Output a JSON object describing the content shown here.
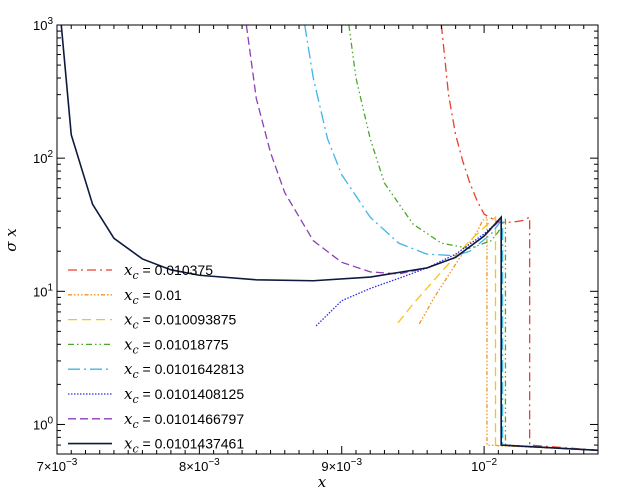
{
  "chart_data": {
    "type": "line",
    "title": "",
    "xlabel": "x",
    "ylabel": "σ x",
    "xlim": [
      0.007,
      0.0108
    ],
    "ylim": [
      0.6,
      1000
    ],
    "yscale": "log",
    "grid": false,
    "legend_position": "bottom-left",
    "x_ticks": [
      {
        "value": 0.007,
        "mantissa": "7×10",
        "exp": "−3"
      },
      {
        "value": 0.008,
        "mantissa": "8×10",
        "exp": "−3"
      },
      {
        "value": 0.009,
        "mantissa": "9×10",
        "exp": "−3"
      },
      {
        "value": 0.01,
        "mantissa": "10",
        "exp": "−2"
      }
    ],
    "y_ticks": [
      {
        "value": 1,
        "mantissa": "10",
        "exp": "0"
      },
      {
        "value": 10,
        "mantissa": "10",
        "exp": "1"
      },
      {
        "value": 100,
        "mantissa": "10",
        "exp": "2"
      },
      {
        "value": 1000,
        "mantissa": "10",
        "exp": "3"
      }
    ],
    "series": [
      {
        "name": "0.010375",
        "color": "#e8412c",
        "dash": "9,4,2,4",
        "x": [
          0.0097,
          0.00975,
          0.0098,
          0.00985,
          0.0099,
          0.00995,
          0.01,
          0.0101,
          0.0102,
          0.01027,
          0.01027,
          0.01032,
          0.01032,
          0.0108
        ],
        "y": [
          1000,
          300,
          150,
          95,
          65,
          48,
          38,
          33,
          33,
          34,
          34,
          36,
          0.7,
          0.64
        ]
      },
      {
        "name": "0.01",
        "color": "#f0931e",
        "dash": "4,2,1.5,2,1.5,2,1.5,2",
        "x": [
          0.009545,
          0.00965,
          0.0098,
          0.00995,
          0.00999,
          0.01002,
          0.01002,
          0.0108
        ],
        "y": [
          5.7,
          9,
          16,
          28,
          34,
          36,
          0.7,
          0.64
        ]
      },
      {
        "name": "0.010093875",
        "color": "#f5c518",
        "dash": "9,5",
        "x": [
          0.009395,
          0.0095,
          0.0097,
          0.0099,
          0.01004,
          0.01008,
          0.01008,
          0.0108
        ],
        "y": [
          5.8,
          8,
          14,
          24,
          33,
          36,
          0.7,
          0.64
        ]
      },
      {
        "name": "0.01018775",
        "color": "#4aa82a",
        "dash": "6,3,1.5,3,1.5,3",
        "x": [
          0.00905,
          0.0091,
          0.0092,
          0.0093,
          0.0095,
          0.0097,
          0.0099,
          0.01005,
          0.0101,
          0.01015,
          0.01015,
          0.0108
        ],
        "y": [
          1000,
          400,
          140,
          65,
          32,
          23,
          21,
          24,
          28,
          35,
          0.7,
          0.64
        ]
      },
      {
        "name": "0.0101642813",
        "color": "#40b4e8",
        "dash": "12,4,2,4",
        "x": [
          0.00874,
          0.0088,
          0.0089,
          0.009,
          0.0092,
          0.0094,
          0.0096,
          0.0098,
          0.0099,
          0.01005,
          0.01013,
          0.01013,
          0.0108
        ],
        "y": [
          1000,
          400,
          140,
          75,
          36,
          23,
          19,
          18.5,
          20,
          27,
          35,
          0.7,
          0.64
        ]
      },
      {
        "name": "0.0101408125",
        "color": "#2a2ee8",
        "dash": "1.5,1.5",
        "x": [
          0.00882,
          0.009,
          0.0092,
          0.0094,
          0.0096,
          0.0098,
          0.01,
          0.01012,
          0.01012,
          0.0108
        ],
        "y": [
          5.5,
          8.5,
          10.5,
          12.5,
          15,
          19,
          27,
          35,
          0.7,
          0.64
        ]
      },
      {
        "name": "0.0101466797",
        "color": "#8b3fb8",
        "dash": "8,4",
        "x": [
          0.00833,
          0.0084,
          0.0085,
          0.0086,
          0.0088,
          0.009,
          0.0092,
          0.0094,
          0.0096,
          0.0098,
          0.01,
          0.01012,
          0.01012,
          0.0108
        ],
        "y": [
          1000,
          280,
          110,
          55,
          24,
          16.5,
          14,
          13.5,
          15,
          18,
          26,
          35,
          0.7,
          0.64
        ]
      },
      {
        "name": "0.0101437461",
        "color": "#0d1a3e",
        "dash": "",
        "x": [
          0.00703,
          0.0071,
          0.00725,
          0.0074,
          0.0076,
          0.0078,
          0.008,
          0.0084,
          0.0088,
          0.0092,
          0.0096,
          0.0098,
          0.01,
          0.01012,
          0.01012,
          0.0108
        ],
        "y": [
          1000,
          150,
          45,
          25,
          17.5,
          14.5,
          13.2,
          12.2,
          12,
          12.8,
          15,
          18,
          26,
          36,
          0.7,
          0.64
        ]
      }
    ]
  },
  "legend": {
    "var": "x",
    "sub": "c",
    "eq": " = "
  }
}
